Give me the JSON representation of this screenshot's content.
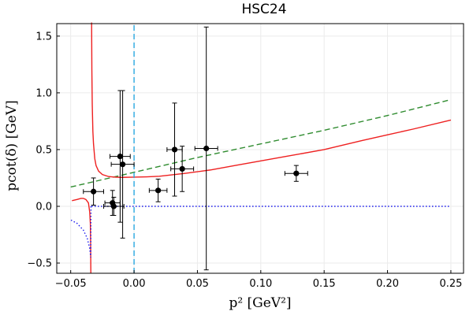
{
  "chart_data": {
    "type": "scatter",
    "title": "HSC24",
    "xlabel": "p² [GeV²]",
    "ylabel": "pcot(δ) [GeV]",
    "xlim": [
      -0.061,
      0.26
    ],
    "ylim": [
      -0.59,
      1.61
    ],
    "xticks": [
      -0.05,
      0.0,
      0.05,
      0.1,
      0.15,
      0.2,
      0.25
    ],
    "xtick_labels": [
      "−0.05",
      "0.00",
      "0.05",
      "0.10",
      "0.15",
      "0.20",
      "0.25"
    ],
    "yticks": [
      -0.5,
      0.0,
      0.5,
      1.0,
      1.5
    ],
    "ytick_labels": [
      "−0.5",
      "0.0",
      "0.5",
      "1.0",
      "1.5"
    ],
    "grid": true,
    "legend": "none",
    "points": [
      {
        "x": -0.032,
        "y": 0.13,
        "xerr": 0.008,
        "yerr": 0.12
      },
      {
        "x": -0.017,
        "y": 0.03,
        "xerr": 0.006,
        "yerr": 0.11
      },
      {
        "x": -0.016,
        "y": 0.0,
        "xerr": 0.008,
        "yerr": 0.08
      },
      {
        "x": -0.011,
        "y": 0.44,
        "xerr": 0.008,
        "yerr": 0.58
      },
      {
        "x": -0.009,
        "y": 0.37,
        "xerr": 0.009,
        "yerr": 0.65
      },
      {
        "x": 0.019,
        "y": 0.14,
        "xerr": 0.007,
        "yerr": 0.1
      },
      {
        "x": 0.032,
        "y": 0.5,
        "xerr": 0.006,
        "yerr": 0.41
      },
      {
        "x": 0.038,
        "y": 0.33,
        "xerr": 0.009,
        "yerr": 0.2
      },
      {
        "x": 0.057,
        "y": 0.51,
        "xerr": 0.009,
        "yerr": 1.07
      },
      {
        "x": 0.128,
        "y": 0.29,
        "xerr": 0.009,
        "yerr": 0.07
      }
    ],
    "series": [
      {
        "name": "green-dashed-line",
        "style": "dashed",
        "color": "#2e8b2e",
        "x": [
          -0.05,
          0.0,
          0.05,
          0.1,
          0.15,
          0.2,
          0.25
        ],
        "y": [
          0.17,
          0.3,
          0.43,
          0.55,
          0.67,
          0.8,
          0.94
        ]
      },
      {
        "name": "red-curve-right",
        "style": "solid",
        "color": "#ee2020",
        "x": [
          -0.0335,
          -0.0333,
          -0.033,
          -0.0325,
          -0.032,
          -0.031,
          -0.03,
          -0.028,
          -0.025,
          -0.02,
          -0.015,
          -0.01,
          0.0,
          0.01,
          0.02,
          0.04,
          0.06,
          0.08,
          0.1,
          0.12,
          0.15,
          0.18,
          0.2,
          0.22,
          0.25
        ],
        "y": [
          1.62,
          1.2,
          0.9,
          0.66,
          0.55,
          0.42,
          0.36,
          0.31,
          0.28,
          0.262,
          0.257,
          0.255,
          0.257,
          0.26,
          0.265,
          0.29,
          0.32,
          0.36,
          0.4,
          0.44,
          0.5,
          0.58,
          0.63,
          0.68,
          0.76
        ]
      },
      {
        "name": "red-curve-left",
        "style": "solid",
        "color": "#ee2020",
        "x": [
          -0.049,
          -0.045,
          -0.042,
          -0.04,
          -0.038,
          -0.036,
          -0.035,
          -0.0345,
          -0.0343,
          -0.0342,
          -0.0341
        ],
        "y": [
          0.05,
          0.06,
          0.07,
          0.07,
          0.06,
          0.03,
          -0.05,
          -0.15,
          -0.3,
          -0.45,
          -0.59
        ]
      },
      {
        "name": "blue-dotted-line",
        "style": "dotted",
        "color": "#1a1aee",
        "x": [
          -0.034,
          -0.0342,
          -0.035,
          -0.037,
          -0.04,
          -0.045,
          -0.05
        ],
        "y": [
          0.0,
          -0.45,
          -0.37,
          -0.28,
          -0.21,
          -0.15,
          -0.12
        ]
      },
      {
        "name": "blue-dotted-zero",
        "style": "dotted",
        "color": "#1a1aee",
        "x": [
          -0.0336,
          0.25
        ],
        "y": [
          0.0,
          0.0
        ]
      },
      {
        "name": "cyan-vertical-line",
        "style": "dashed",
        "color": "#2aa8e0",
        "x": [
          0.0,
          0.0
        ],
        "y": [
          -0.59,
          1.61
        ]
      }
    ]
  }
}
